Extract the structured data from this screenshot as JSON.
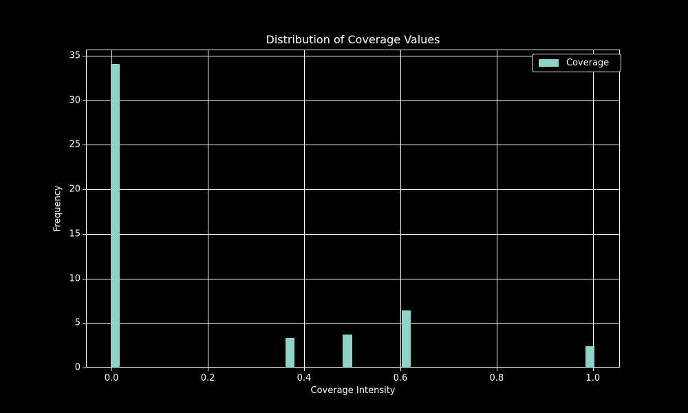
{
  "figure": {
    "title": "Distribution of Coverage Values",
    "xlabel": "Coverage Intensity",
    "ylabel": "Frequency",
    "legend": {
      "label": "Coverage"
    }
  },
  "chart_data": {
    "type": "bar",
    "title": "Distribution of Coverage Values",
    "xlabel": "Coverage Intensity",
    "ylabel": "Frequency",
    "series": [
      {
        "name": "Coverage",
        "color": "#8dd3c7",
        "bar_width": 0.019,
        "bars": [
          {
            "x": 0.008,
            "height": 34.1
          },
          {
            "x": 0.371,
            "height": 3.3
          },
          {
            "x": 0.49,
            "height": 3.7
          },
          {
            "x": 0.612,
            "height": 6.4
          },
          {
            "x": 0.994,
            "height": 2.4
          }
        ]
      }
    ],
    "xlim": [
      -0.053,
      1.056
    ],
    "ylim": [
      0,
      35.7
    ],
    "xticks": [
      0.0,
      0.2,
      0.4,
      0.6,
      0.8,
      1.0
    ],
    "xtick_labels": [
      "0.0",
      "0.2",
      "0.4",
      "0.6",
      "0.8",
      "1.0"
    ],
    "yticks": [
      0,
      5,
      10,
      15,
      20,
      25,
      30,
      35
    ],
    "ytick_labels": [
      "0",
      "5",
      "10",
      "15",
      "20",
      "25",
      "30",
      "35"
    ],
    "grid": true,
    "legend_position": "upper right",
    "colors": {
      "background": "#000000",
      "foreground": "#ffffff",
      "bar": "#8dd3c7"
    }
  }
}
